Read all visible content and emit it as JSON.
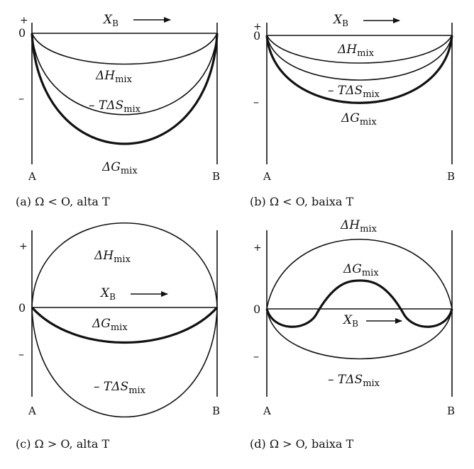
{
  "panels": [
    {
      "id": "a",
      "caption": "(a) Ω < O, alta T",
      "end_a": "A",
      "end_b": "B",
      "plus": "+",
      "zero": "0",
      "minus": "–",
      "xb_label": "X",
      "xb_sub": "B",
      "curves": {
        "dH": {
          "prefix": "",
          "sym": "ΔH",
          "sub": "mix"
        },
        "TdS": {
          "prefix": "– T",
          "sym": "ΔS",
          "sub": "mix"
        },
        "dG": {
          "prefix": "",
          "sym": "ΔG",
          "sub": "mix"
        }
      }
    },
    {
      "id": "b",
      "caption": "(b) Ω < O,  baixa T",
      "end_a": "A",
      "end_b": "B",
      "plus": "+",
      "zero": "0",
      "minus": "–",
      "xb_label": "X",
      "xb_sub": "B",
      "curves": {
        "dH": {
          "prefix": "",
          "sym": "ΔH",
          "sub": "mix"
        },
        "TdS": {
          "prefix": "– T",
          "sym": "ΔS",
          "sub": "mix"
        },
        "dG": {
          "prefix": "",
          "sym": "ΔG",
          "sub": "mix"
        }
      }
    },
    {
      "id": "c",
      "caption": "(c) Ω > O, alta T",
      "end_a": "A",
      "end_b": "B",
      "plus": "+",
      "zero": "0",
      "minus": "–",
      "xb_label": "X",
      "xb_sub": "B",
      "curves": {
        "dH": {
          "prefix": "",
          "sym": "ΔH",
          "sub": "mix"
        },
        "TdS": {
          "prefix": "– T",
          "sym": "ΔS",
          "sub": "mix"
        },
        "dG": {
          "prefix": "",
          "sym": "ΔG",
          "sub": "mix"
        }
      }
    },
    {
      "id": "d",
      "caption": "(d) Ω > O, baixa T",
      "end_a": "A",
      "end_b": "B",
      "plus": "+",
      "zero": "0",
      "minus": "–",
      "xb_label": "X",
      "xb_sub": "B",
      "curves": {
        "dH": {
          "prefix": "",
          "sym": "ΔH",
          "sub": "mix"
        },
        "TdS": {
          "prefix": "– T",
          "sym": "ΔS",
          "sub": "mix"
        },
        "dG": {
          "prefix": "",
          "sym": "ΔG",
          "sub": "mix"
        }
      }
    }
  ]
}
